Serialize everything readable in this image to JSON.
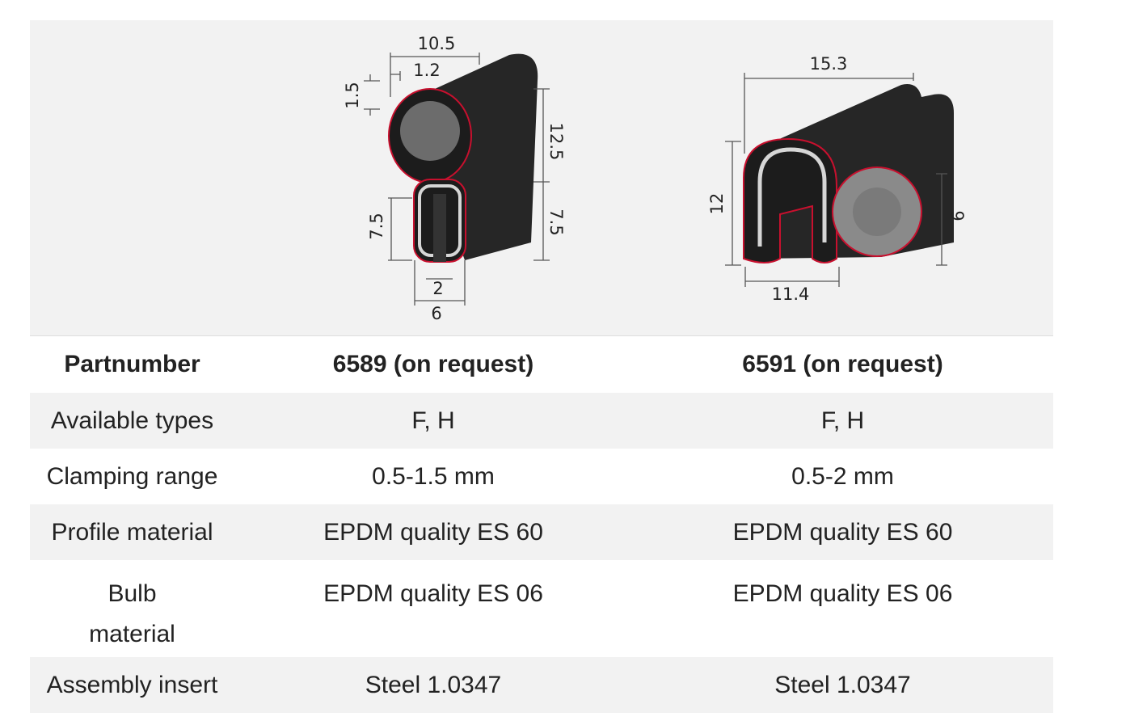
{
  "images": [
    {
      "dimensions": [
        "10.5",
        "1.2",
        "1.5",
        "12.5",
        "7.5",
        "7.5",
        "2",
        "6"
      ]
    },
    {
      "dimensions": [
        "15.3",
        "12",
        "9",
        "11.4"
      ]
    }
  ],
  "table": {
    "header": [
      "Partnumber",
      "6589 (on request)",
      "6591 (on request)"
    ],
    "rows": [
      [
        "Available types",
        "F, H",
        "F, H"
      ],
      [
        "Clamping range",
        "0.5-1.5 mm",
        "0.5-2 mm"
      ],
      [
        "Profile material",
        "EPDM quality ES 60",
        "EPDM quality ES 60"
      ],
      [
        "Bulb material",
        "EPDM quality ES 06",
        "EPDM quality ES 06"
      ],
      [
        "Assembly insert",
        "Steel 1.0347",
        "Steel 1.0347"
      ]
    ]
  }
}
